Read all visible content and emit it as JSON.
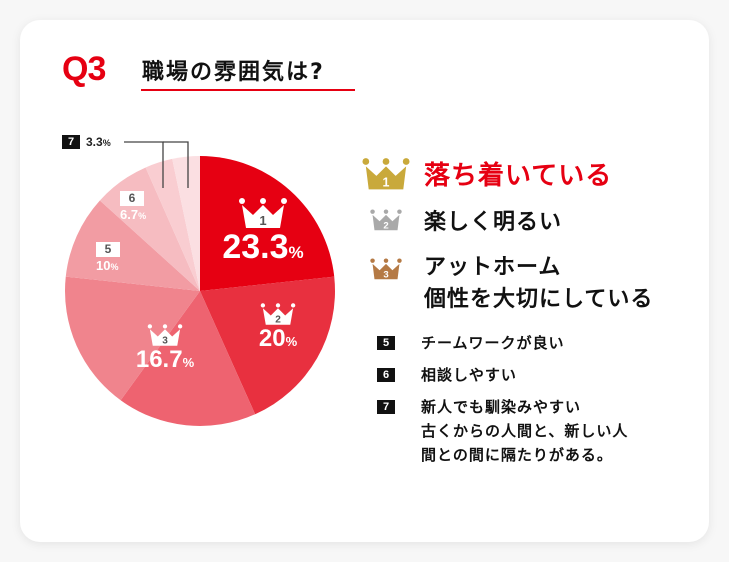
{
  "header": {
    "question_label": "Q3",
    "question_title": "職場の雰囲気は?"
  },
  "colors": {
    "accent": "#e60012",
    "gold": "#c9a93b",
    "silver": "#a9a9a9",
    "bronze": "#b57a45",
    "black_box": "#111111"
  },
  "chart_data": {
    "type": "pie",
    "title": "職場の雰囲気は?",
    "start_angle_deg": 0,
    "direction": "clockwise",
    "slices": [
      {
        "rank": 1,
        "label": "落ち着いている",
        "value": 23.3,
        "color": "#e60012"
      },
      {
        "rank": 2,
        "label": "楽しく明るい",
        "value": 20,
        "color": "#e8303f"
      },
      {
        "rank": 3,
        "label": "アットホーム",
        "value": 16.7,
        "color": "#ee6370"
      },
      {
        "rank": 3,
        "label": "個性を大切にしている",
        "value": 16.7,
        "color": "#f0848d"
      },
      {
        "rank": 5,
        "label": "チームワークが良い",
        "value": 10,
        "color": "#f29ca3"
      },
      {
        "rank": 6,
        "label": "相談しやすい",
        "value": 6.7,
        "color": "#f6bcc1"
      },
      {
        "rank": 7,
        "label": "新人でも馴染みやすい",
        "value": 3.3,
        "color": "#f9cdd1"
      },
      {
        "rank": 7,
        "label": "古くからの人間と、新しい人間との間に隔たりがある。",
        "value": 3.3,
        "color": "#fbdfe2"
      }
    ]
  },
  "pie_labels": {
    "rank1": {
      "rank": "1",
      "value": "23.3",
      "unit": "%"
    },
    "rank2": {
      "rank": "2",
      "value": "20",
      "unit": "%"
    },
    "rank3": {
      "rank": "3",
      "value": "16.7",
      "unit": "%"
    },
    "rank5": {
      "rank": "5",
      "value": "10",
      "unit": "%"
    },
    "rank6": {
      "rank": "6",
      "value": "6.7",
      "unit": "%"
    },
    "rank7": {
      "rank": "7",
      "value": "3.3",
      "unit": "%"
    }
  },
  "legend": {
    "rank1": {
      "num": "1",
      "text": "落ち着いている"
    },
    "rank2": {
      "num": "2",
      "text": "楽しく明るい"
    },
    "rank3": {
      "num": "3",
      "lines": [
        "アットホーム",
        "個性を大切にしている"
      ]
    },
    "rank5": {
      "num": "5",
      "text": "チームワークが良い"
    },
    "rank6": {
      "num": "6",
      "text": "相談しやすい"
    },
    "rank7": {
      "num": "7",
      "lines": [
        "新人でも馴染みやすい",
        "古くからの人間と、新しい人",
        "間との間に隔たりがある。"
      ]
    }
  }
}
